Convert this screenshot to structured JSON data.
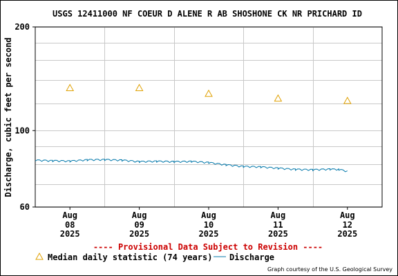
{
  "chart_data": {
    "type": "line",
    "title": "USGS 12411000 NF COEUR D ALENE R AB SHOSHONE CK NR PRICHARD ID",
    "ylabel": "Discharge, cubic feet per second",
    "y_scale": "log",
    "ylim": [
      60,
      200
    ],
    "y_ticks": [
      "60",
      "100",
      "200"
    ],
    "x_ticks": [
      {
        "month": "Aug",
        "day": "08",
        "year": "2025"
      },
      {
        "month": "Aug",
        "day": "09",
        "year": "2025"
      },
      {
        "month": "Aug",
        "day": "10",
        "year": "2025"
      },
      {
        "month": "Aug",
        "day": "11",
        "year": "2025"
      },
      {
        "month": "Aug",
        "day": "12",
        "year": "2025"
      }
    ],
    "xlim": [
      "2025-08-07 12:00",
      "2025-08-12 12:00"
    ],
    "grid": true,
    "provisional_note": "---- Provisional Data Subject to Revision ----",
    "credit": "Graph courtesy of the U.S. Geological Survey",
    "series": [
      {
        "name": "Median daily statistic (74 years)",
        "marker": "triangle",
        "color": "#e0a000",
        "x": [
          "2025-08-08 00:00",
          "2025-08-09 00:00",
          "2025-08-10 00:00",
          "2025-08-11 00:00",
          "2025-08-12 00:00"
        ],
        "values": [
          133,
          133,
          128,
          124,
          122
        ]
      },
      {
        "name": "Discharge",
        "marker": "line",
        "color": "#0077aa",
        "x": [
          "2025-08-07 12:00",
          "2025-08-07 18:00",
          "2025-08-08 00:00",
          "2025-08-08 06:00",
          "2025-08-08 12:00",
          "2025-08-08 18:00",
          "2025-08-09 00:00",
          "2025-08-09 06:00",
          "2025-08-09 12:00",
          "2025-08-09 18:00",
          "2025-08-10 00:00",
          "2025-08-10 06:00",
          "2025-08-10 12:00",
          "2025-08-10 18:00",
          "2025-08-11 00:00",
          "2025-08-11 06:00",
          "2025-08-11 12:00",
          "2025-08-11 18:00",
          "2025-08-11 21:00",
          "2025-08-12 00:00"
        ],
        "values": [
          82.3,
          82.0,
          81.8,
          82.5,
          82.6,
          82.3,
          81.5,
          81.7,
          81.5,
          81.6,
          81.0,
          79.8,
          78.9,
          78.7,
          78.0,
          77.4,
          77.2,
          77.5,
          77.4,
          76.4
        ]
      }
    ]
  }
}
